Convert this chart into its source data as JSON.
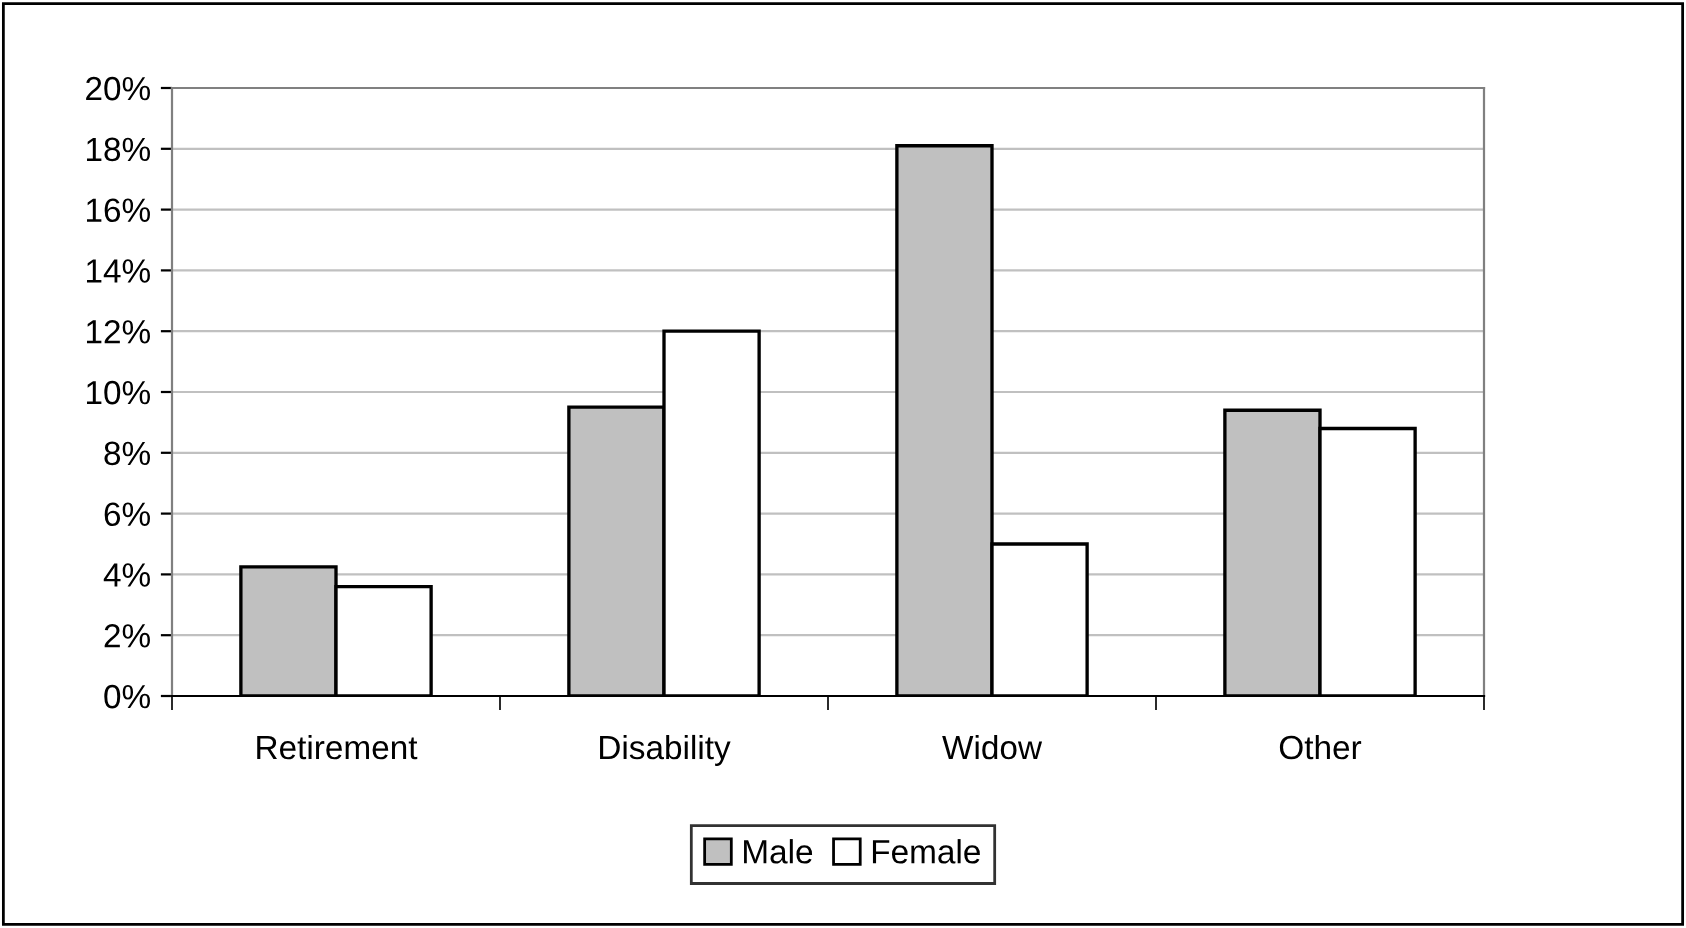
{
  "chart_data": {
    "type": "bar",
    "categories": [
      "Retirement",
      "Disability",
      "Widow",
      "Other"
    ],
    "series": [
      {
        "name": "Male",
        "color": "#c0c0c0",
        "values": [
          4.25,
          9.5,
          18.1,
          9.4
        ]
      },
      {
        "name": "Female",
        "color": "#ffffff",
        "values": [
          3.6,
          12.0,
          5.0,
          8.8
        ]
      }
    ],
    "ylim": [
      0,
      20
    ],
    "yticks": [
      {
        "value": 0,
        "label": "0%"
      },
      {
        "value": 2,
        "label": "2%"
      },
      {
        "value": 4,
        "label": "4%"
      },
      {
        "value": 6,
        "label": "6%"
      },
      {
        "value": 8,
        "label": "8%"
      },
      {
        "value": 10,
        "label": "10%"
      },
      {
        "value": 12,
        "label": "12%"
      },
      {
        "value": 14,
        "label": "14%"
      },
      {
        "value": 16,
        "label": "16%"
      },
      {
        "value": 18,
        "label": "18%"
      },
      {
        "value": 20,
        "label": "20%"
      }
    ],
    "grid": "y",
    "legend": "bottom"
  }
}
